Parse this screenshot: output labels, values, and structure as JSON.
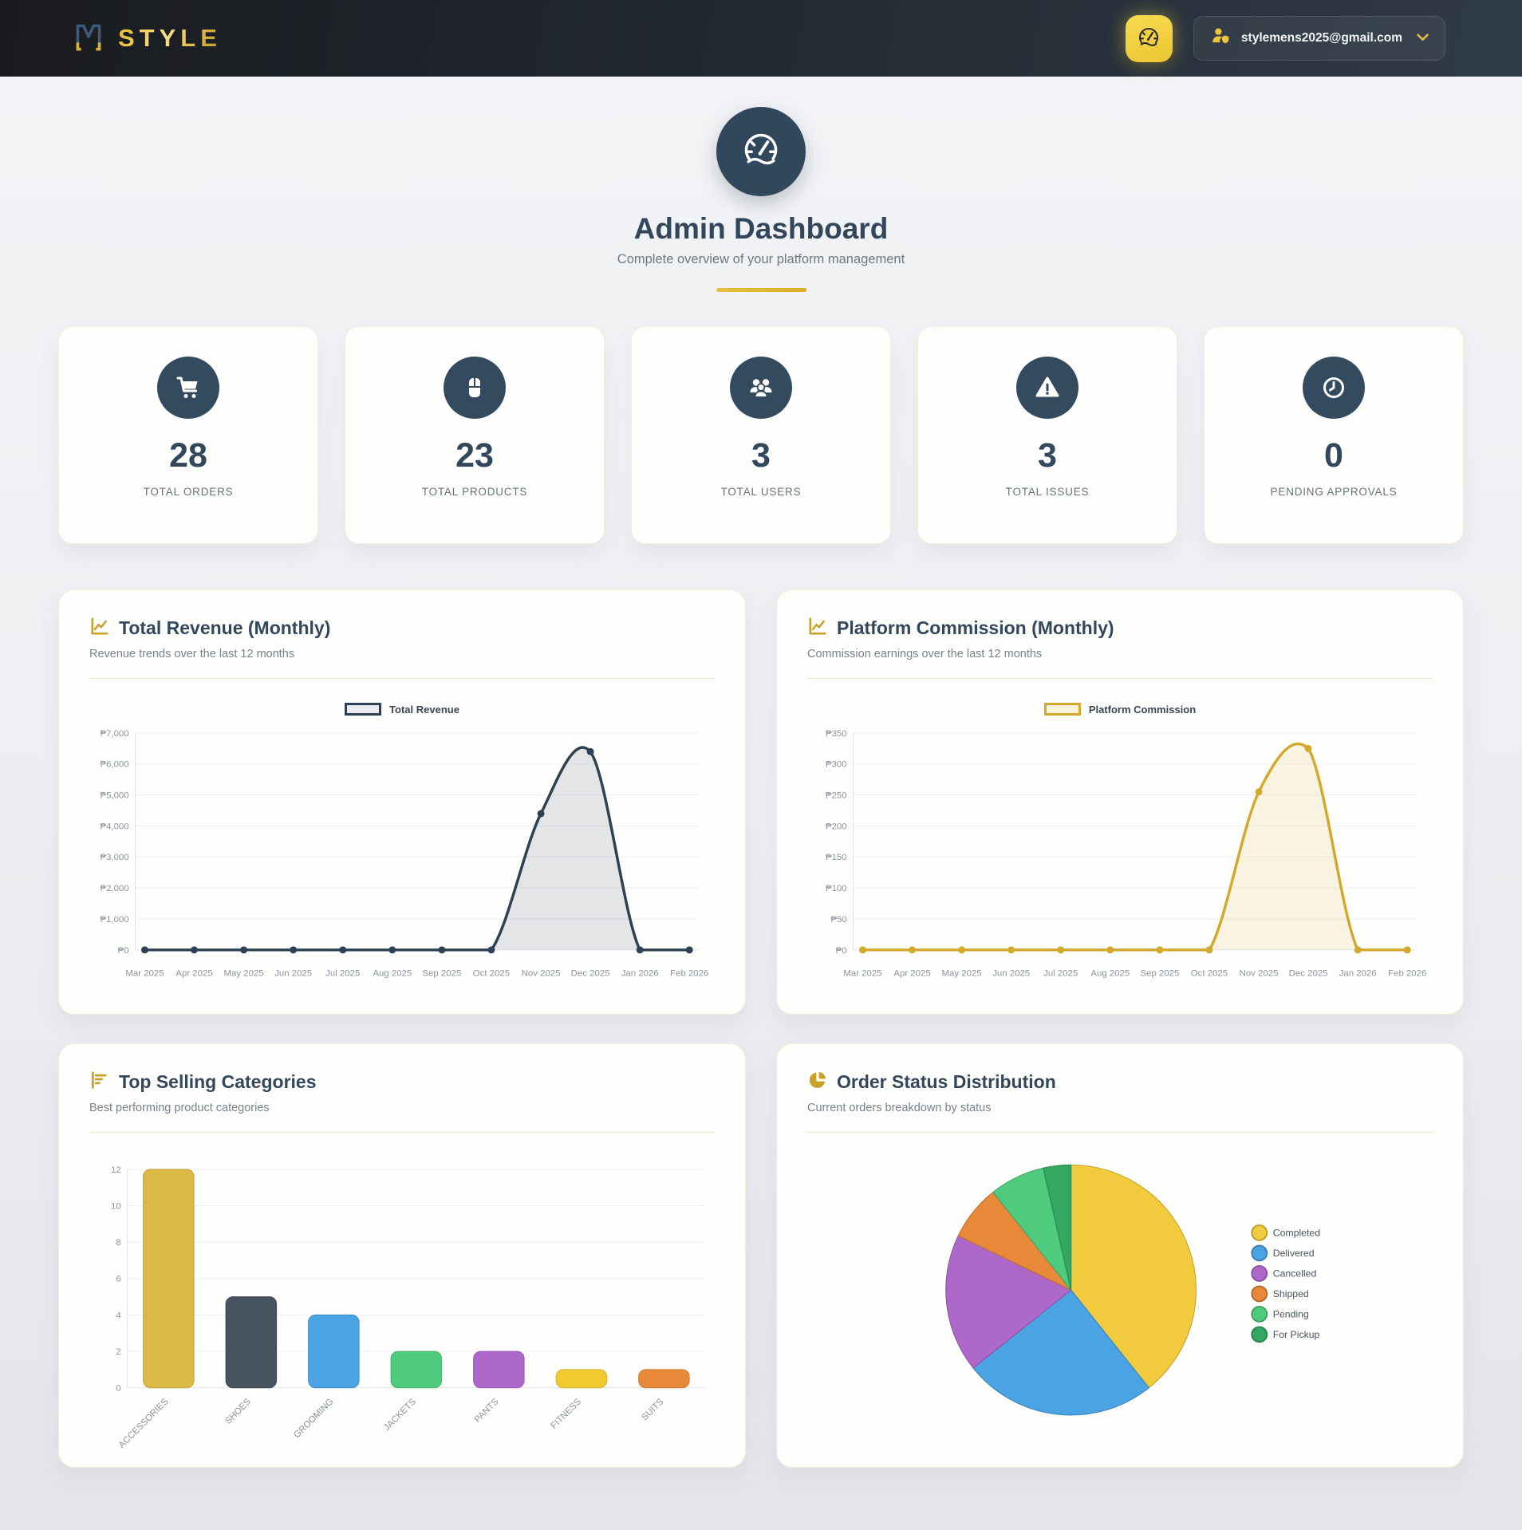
{
  "navbar": {
    "brand": "STYLE",
    "user_email": "stylemens2025@gmail.com"
  },
  "header": {
    "title": "Admin Dashboard",
    "subtitle": "Complete overview of your platform management"
  },
  "stats": [
    {
      "value": "28",
      "label": "TOTAL ORDERS",
      "icon": "cart-icon"
    },
    {
      "value": "23",
      "label": "TOTAL PRODUCTS",
      "icon": "box-icon"
    },
    {
      "value": "3",
      "label": "TOTAL USERS",
      "icon": "users-icon"
    },
    {
      "value": "3",
      "label": "TOTAL ISSUES",
      "icon": "warning-icon"
    },
    {
      "value": "0",
      "label": "PENDING APPROVALS",
      "icon": "clock-icon"
    }
  ],
  "chart_data": [
    {
      "type": "line",
      "name": "total-revenue",
      "title": "Total Revenue (Monthly)",
      "subtitle": "Revenue trends over the last 12 months",
      "legend": "Total Revenue",
      "x": [
        "Mar 2025",
        "Apr 2025",
        "May 2025",
        "Jun 2025",
        "Jul 2025",
        "Aug 2025",
        "Sep 2025",
        "Oct 2025",
        "Nov 2025",
        "Dec 2025",
        "Jan 2026",
        "Feb 2026"
      ],
      "values": [
        0,
        0,
        0,
        0,
        0,
        0,
        0,
        0,
        4400,
        6400,
        0,
        0
      ],
      "ylim": [
        0,
        7000
      ],
      "ystep": 1000,
      "currency": "₱",
      "line_color": "#2e4053",
      "fill_color": "rgba(106,119,134,0.18)",
      "legend_fill": "#e9ebee",
      "grid": true,
      "legend_position": "top"
    },
    {
      "type": "line",
      "name": "platform-commission",
      "title": "Platform Commission (Monthly)",
      "subtitle": "Commission earnings over the last 12 months",
      "legend": "Platform Commission",
      "x": [
        "Mar 2025",
        "Apr 2025",
        "May 2025",
        "Jun 2025",
        "Jul 2025",
        "Aug 2025",
        "Sep 2025",
        "Oct 2025",
        "Nov 2025",
        "Dec 2025",
        "Jan 2026",
        "Feb 2026"
      ],
      "values": [
        0,
        0,
        0,
        0,
        0,
        0,
        0,
        0,
        255,
        325,
        0,
        0
      ],
      "ylim": [
        0,
        350
      ],
      "ystep": 50,
      "currency": "₱",
      "line_color": "#d2a92c",
      "fill_color": "rgba(222,192,88,0.16)",
      "legend_fill": "#f8f1d9",
      "grid": true,
      "legend_position": "top"
    },
    {
      "type": "bar",
      "name": "top-selling-categories",
      "title": "Top Selling Categories",
      "subtitle": "Best performing product categories",
      "categories": [
        "ACCESSORIES",
        "SHOES",
        "GROOMING",
        "JACKETS",
        "PANTS",
        "FITNESS",
        "SUITS"
      ],
      "values": [
        12,
        5,
        4,
        2,
        2,
        1,
        1
      ],
      "colors": [
        "#dcb945",
        "#47545f",
        "#4ba3e3",
        "#4fcb7e",
        "#ad68c9",
        "#f1ca30",
        "#e8893a"
      ],
      "ylim": [
        0,
        12
      ],
      "ystep": 2,
      "grid": true
    },
    {
      "type": "pie",
      "name": "order-status-distribution",
      "title": "Order Status Distribution",
      "subtitle": "Current orders breakdown by status",
      "labels": [
        "Completed",
        "Delivered",
        "Cancelled",
        "Shipped",
        "Pending",
        "For Pickup"
      ],
      "values": [
        11,
        7,
        5,
        2,
        2,
        1
      ],
      "colors": [
        "#f1ca3d",
        "#4ba3e3",
        "#ad68c9",
        "#e8893a",
        "#4fcb7e",
        "#34a863"
      ],
      "legend_position": "right"
    }
  ]
}
